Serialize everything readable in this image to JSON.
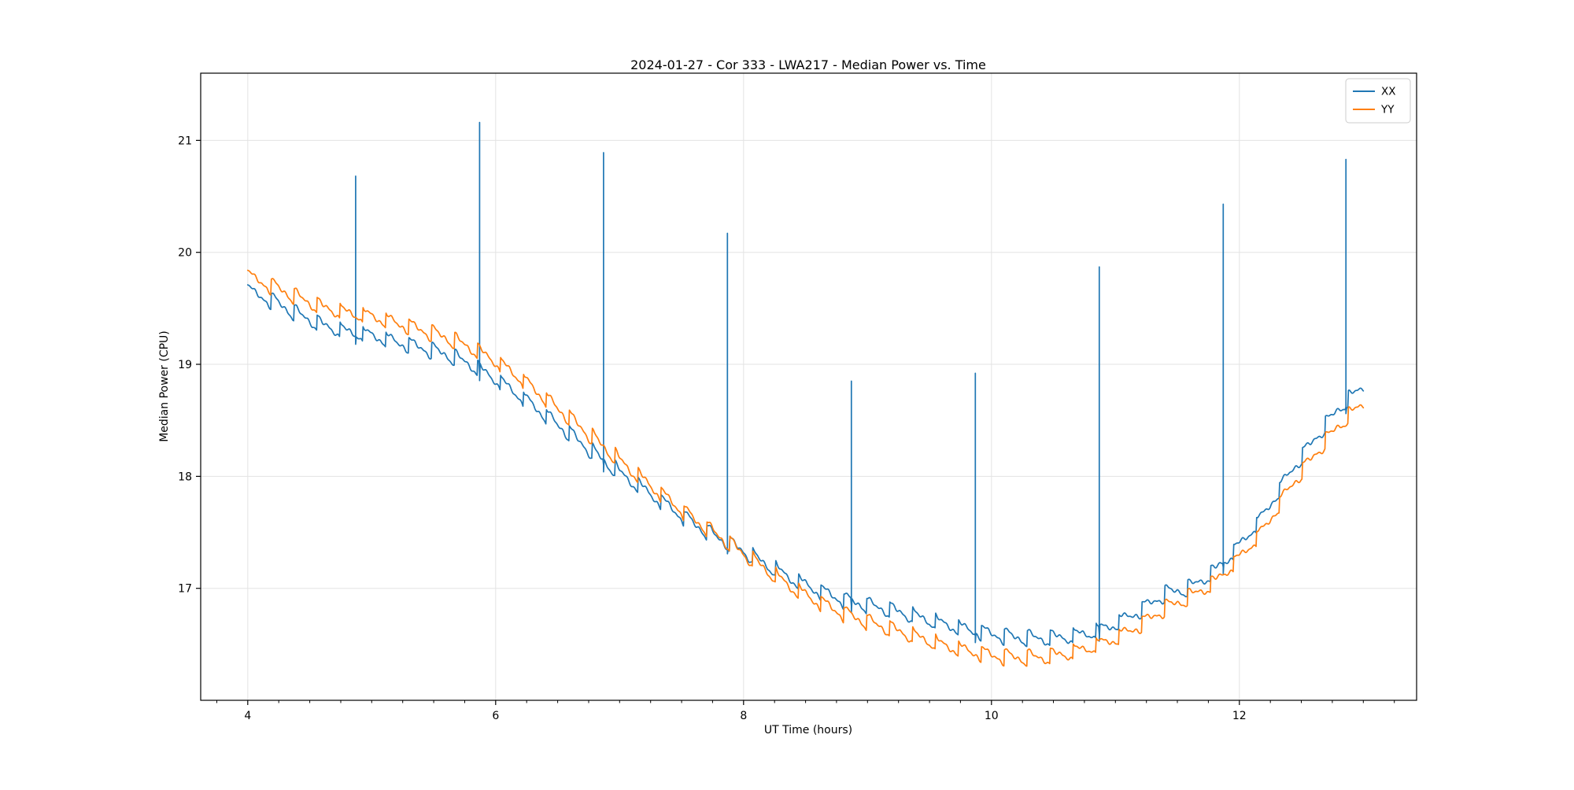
{
  "title": "2024-01-27 - Cor 333 - LWA217 - Median Power vs. Time",
  "axes": {
    "xlabel": "UT Time (hours)",
    "ylabel": "Median Power (CPU)",
    "xlim": [
      3.62,
      13.43
    ],
    "ylim": [
      16.0,
      21.6
    ],
    "xticks": [
      4,
      6,
      8,
      10,
      12
    ],
    "xminor_step": 0.25,
    "yticks": [
      17,
      18,
      19,
      20,
      21
    ],
    "grid": true,
    "grid_color": "#e3e3e3",
    "spine_color": "#000000"
  },
  "legend": {
    "position": "upper right",
    "entries": [
      {
        "label": "XX",
        "color": "#1f77b4"
      },
      {
        "label": "YY",
        "color": "#ff7f0e"
      }
    ]
  },
  "chart_data": {
    "type": "line",
    "xlabel": "UT Time (hours)",
    "ylabel": "Median Power (CPU)",
    "title": "2024-01-27 - Cor 333 - LWA217 - Median Power vs. Time",
    "x_range_hours": [
      4.0,
      13.0
    ],
    "oscillation": {
      "shape": "sawtooth-fast-rise",
      "period_hours": 0.185,
      "amplitude": 0.07,
      "jitter": 0.012
    },
    "series": [
      {
        "name": "XX",
        "color": "#1f77b4",
        "baseline": [
          [
            4.0,
            19.65
          ],
          [
            4.2,
            19.57
          ],
          [
            4.4,
            19.45
          ],
          [
            4.6,
            19.35
          ],
          [
            4.8,
            19.29
          ],
          [
            5.0,
            19.26
          ],
          [
            5.2,
            19.2
          ],
          [
            5.4,
            19.15
          ],
          [
            5.6,
            19.09
          ],
          [
            5.8,
            19.0
          ],
          [
            6.0,
            18.87
          ],
          [
            6.2,
            18.72
          ],
          [
            6.4,
            18.55
          ],
          [
            6.6,
            18.38
          ],
          [
            6.8,
            18.2
          ],
          [
            7.0,
            18.03
          ],
          [
            7.2,
            17.88
          ],
          [
            7.4,
            17.73
          ],
          [
            7.6,
            17.58
          ],
          [
            7.8,
            17.45
          ],
          [
            8.0,
            17.33
          ],
          [
            8.2,
            17.2
          ],
          [
            8.4,
            17.08
          ],
          [
            8.6,
            16.98
          ],
          [
            8.8,
            16.9
          ],
          [
            9.0,
            16.85
          ],
          [
            9.2,
            16.8
          ],
          [
            9.4,
            16.74
          ],
          [
            9.6,
            16.68
          ],
          [
            9.8,
            16.63
          ],
          [
            10.0,
            16.59
          ],
          [
            10.2,
            16.56
          ],
          [
            10.4,
            16.55
          ],
          [
            10.6,
            16.56
          ],
          [
            10.8,
            16.6
          ],
          [
            11.0,
            16.68
          ],
          [
            11.2,
            16.8
          ],
          [
            11.4,
            16.95
          ],
          [
            11.6,
            17.0
          ],
          [
            11.8,
            17.15
          ],
          [
            12.0,
            17.38
          ],
          [
            12.2,
            17.66
          ],
          [
            12.4,
            18.02
          ],
          [
            12.6,
            18.32
          ],
          [
            12.8,
            18.6
          ],
          [
            13.0,
            18.8
          ]
        ],
        "spikes": [
          [
            4.87,
            20.68
          ],
          [
            5.87,
            21.16
          ],
          [
            6.87,
            20.89
          ],
          [
            7.87,
            20.17
          ],
          [
            8.87,
            18.85
          ],
          [
            9.87,
            18.92
          ],
          [
            10.87,
            19.87
          ],
          [
            11.87,
            20.43
          ],
          [
            12.86,
            20.83
          ]
        ]
      },
      {
        "name": "YY",
        "color": "#ff7f0e",
        "baseline": [
          [
            4.0,
            19.78
          ],
          [
            4.2,
            19.7
          ],
          [
            4.4,
            19.6
          ],
          [
            4.6,
            19.51
          ],
          [
            4.8,
            19.46
          ],
          [
            5.0,
            19.43
          ],
          [
            5.2,
            19.37
          ],
          [
            5.4,
            19.31
          ],
          [
            5.6,
            19.24
          ],
          [
            5.8,
            19.15
          ],
          [
            6.0,
            19.03
          ],
          [
            6.2,
            18.88
          ],
          [
            6.4,
            18.7
          ],
          [
            6.6,
            18.52
          ],
          [
            6.8,
            18.33
          ],
          [
            7.0,
            18.14
          ],
          [
            7.2,
            17.96
          ],
          [
            7.4,
            17.79
          ],
          [
            7.6,
            17.62
          ],
          [
            7.8,
            17.47
          ],
          [
            8.0,
            17.31
          ],
          [
            8.2,
            17.15
          ],
          [
            8.4,
            17.0
          ],
          [
            8.6,
            16.88
          ],
          [
            8.8,
            16.78
          ],
          [
            9.0,
            16.7
          ],
          [
            9.2,
            16.63
          ],
          [
            9.4,
            16.56
          ],
          [
            9.6,
            16.49
          ],
          [
            9.8,
            16.44
          ],
          [
            10.0,
            16.4
          ],
          [
            10.2,
            16.38
          ],
          [
            10.4,
            16.38
          ],
          [
            10.6,
            16.41
          ],
          [
            10.8,
            16.47
          ],
          [
            11.0,
            16.55
          ],
          [
            11.2,
            16.67
          ],
          [
            11.4,
            16.82
          ],
          [
            11.6,
            16.92
          ],
          [
            11.8,
            17.05
          ],
          [
            12.0,
            17.27
          ],
          [
            12.2,
            17.53
          ],
          [
            12.4,
            17.89
          ],
          [
            12.6,
            18.18
          ],
          [
            12.8,
            18.45
          ],
          [
            13.0,
            18.65
          ]
        ],
        "spikes": []
      }
    ]
  }
}
